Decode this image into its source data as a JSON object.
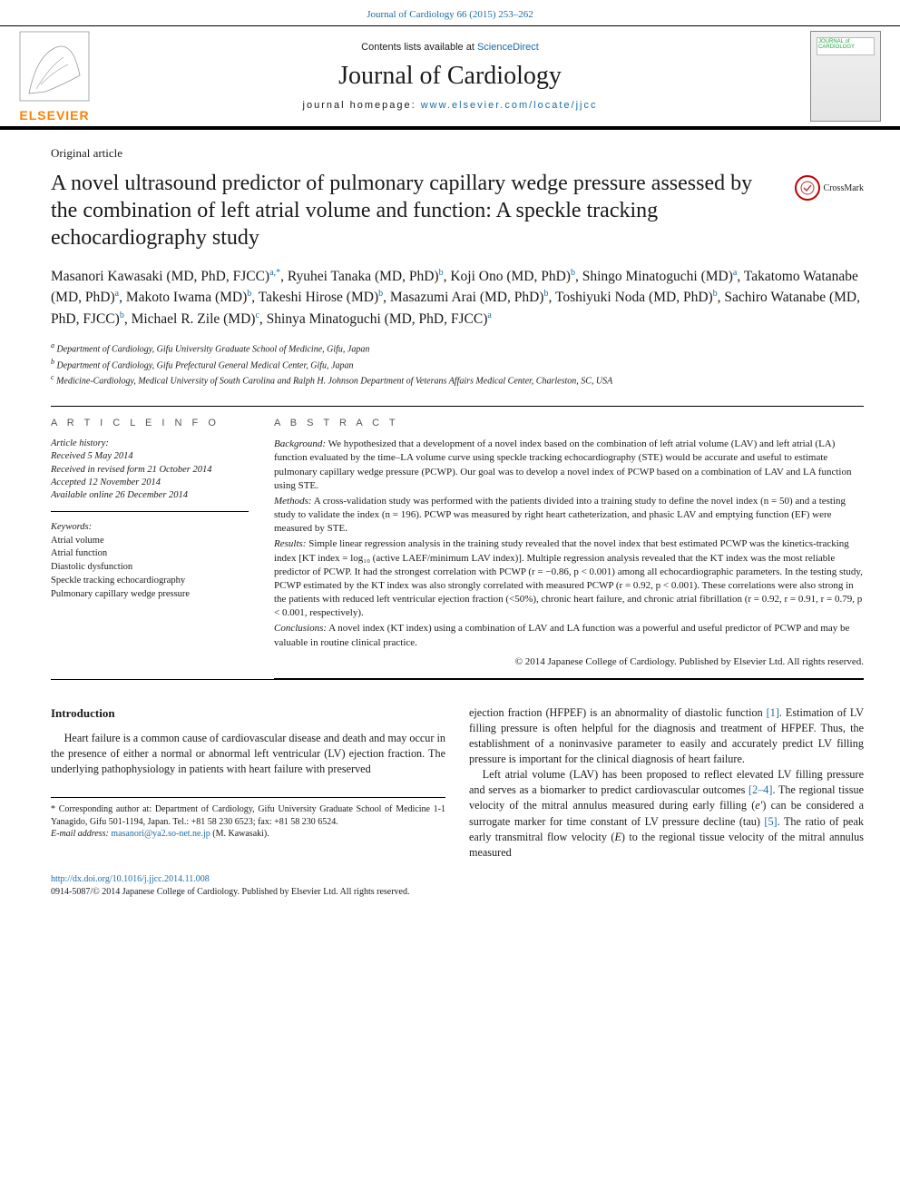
{
  "top_citation": "Journal of Cardiology 66 (2015) 253–262",
  "masthead": {
    "publisher_name": "ELSEVIER",
    "contents_prefix": "Contents lists available at ",
    "contents_link": "ScienceDirect",
    "journal": "Journal of Cardiology",
    "homepage_prefix": "journal homepage: ",
    "homepage_url": "www.elsevier.com/locate/jjcc",
    "cover_title": "JOURNAL of CARDIOLOGY"
  },
  "article_type": "Original article",
  "title": "A novel ultrasound predictor of pulmonary capillary wedge pressure assessed by the combination of left atrial volume and function: A speckle tracking echocardiography study",
  "crossmark_label": "CrossMark",
  "authors_html": "Masanori Kawasaki (MD, PhD, FJCC)<span class='affil-sup'>a,</span><span class='affil-sup star'>*</span>, Ryuhei Tanaka (MD, PhD)<span class='affil-sup'>b</span>, Koji Ono (MD, PhD)<span class='affil-sup'>b</span>, Shingo Minatoguchi (MD)<span class='affil-sup'>a</span>, Takatomo Watanabe (MD, PhD)<span class='affil-sup'>a</span>, Makoto Iwama (MD)<span class='affil-sup'>b</span>, Takeshi Hirose (MD)<span class='affil-sup'>b</span>, Masazumi Arai (MD, PhD)<span class='affil-sup'>b</span>, Toshiyuki Noda (MD, PhD)<span class='affil-sup'>b</span>, Sachiro Watanabe (MD, PhD, FJCC)<span class='affil-sup'>b</span>, Michael R. Zile (MD)<span class='affil-sup'>c</span>, Shinya Minatoguchi (MD, PhD, FJCC)<span class='affil-sup'>a</span>",
  "affiliations": {
    "a": "Department of Cardiology, Gifu University Graduate School of Medicine, Gifu, Japan",
    "b": "Department of Cardiology, Gifu Prefectural General Medical Center, Gifu, Japan",
    "c": "Medicine-Cardiology, Medical University of South Carolina and Ralph H. Johnson Department of Veterans Affairs Medical Center, Charleston, SC, USA"
  },
  "info_header": "A R T I C L E   I N F O",
  "abstract_header": "A B S T R A C T",
  "history": {
    "label": "Article history:",
    "received": "Received 5 May 2014",
    "revised": "Received in revised form 21 October 2014",
    "accepted": "Accepted 12 November 2014",
    "online": "Available online 26 December 2014"
  },
  "keywords": {
    "label": "Keywords:",
    "items": [
      "Atrial volume",
      "Atrial function",
      "Diastolic dysfunction",
      "Speckle tracking echocardiography",
      "Pulmonary capillary wedge pressure"
    ]
  },
  "abstract": {
    "background_label": "Background:",
    "background": " We hypothesized that a development of a novel index based on the combination of left atrial volume (LAV) and left atrial (LA) function evaluated by the time–LA volume curve using speckle tracking echocardiography (STE) would be accurate and useful to estimate pulmonary capillary wedge pressure (PCWP). Our goal was to develop a novel index of PCWP based on a combination of LAV and LA function using STE.",
    "methods_label": "Methods:",
    "methods": " A cross-validation study was performed with the patients divided into a training study to define the novel index (n = 50) and a testing study to validate the index (n = 196). PCWP was measured by right heart catheterization, and phasic LAV and emptying function (EF) were measured by STE.",
    "results_label": "Results:",
    "results": " Simple linear regression analysis in the training study revealed that the novel index that best estimated PCWP was the kinetics-tracking index [KT index = log₁₀ (active LAEF/minimum LAV index)]. Multiple regression analysis revealed that the KT index was the most reliable predictor of PCWP. It had the strongest correlation with PCWP (r = −0.86, p < 0.001) among all echocardiographic parameters. In the testing study, PCWP estimated by the KT index was also strongly correlated with measured PCWP (r = 0.92, p < 0.001). These correlations were also strong in the patients with reduced left ventricular ejection fraction (<50%), chronic heart failure, and chronic atrial fibrillation (r = 0.92, r = 0.91, r = 0.79, p < 0.001, respectively).",
    "conclusions_label": "Conclusions:",
    "conclusions": " A novel index (KT index) using a combination of LAV and LA function was a powerful and useful predictor of PCWP and may be valuable in routine clinical practice.",
    "copyright": "© 2014 Japanese College of Cardiology. Published by Elsevier Ltd. All rights reserved."
  },
  "intro": {
    "heading": "Introduction",
    "p1": "Heart failure is a common cause of cardiovascular disease and death and may occur in the presence of either a normal or abnormal left ventricular (LV) ejection fraction. The underlying pathophysiology in patients with heart failure with preserved",
    "p2_a": "ejection fraction (HFPEF) is an abnormality of diastolic function ",
    "p2_ref1": "[1]",
    "p2_b": ". Estimation of LV filling pressure is often helpful for the diagnosis and treatment of HFPEF. Thus, the establishment of a noninvasive parameter to easily and accurately predict LV filling pressure is important for the clinical diagnosis of heart failure.",
    "p3_a": "Left atrial volume (LAV) has been proposed to reflect elevated LV filling pressure and serves as a biomarker to predict cardiovascular outcomes ",
    "p3_ref1": "[2–4]",
    "p3_b": ". The regional tissue velocity of the mitral annulus measured during early filling (",
    "p3_i1": "e′",
    "p3_c": ") can be considered a surrogate marker for time constant of LV pressure decline (tau) ",
    "p3_ref2": "[5]",
    "p3_d": ". The ratio of peak early transmitral flow velocity (",
    "p3_i2": "E",
    "p3_e": ") to the regional tissue velocity of the mitral annulus measured"
  },
  "footnotes": {
    "corr_label": "* Corresponding author at: ",
    "corr_text": "Department of Cardiology, Gifu University Graduate School of Medicine 1-1 Yanagido, Gifu 501-1194, Japan. Tel.: +81 58 230 6523; fax: +81 58 230 6524.",
    "email_label": "E-mail address: ",
    "email": "masanori@ya2.so-net.ne.jp",
    "email_suffix": " (M. Kawasaki)."
  },
  "doi": {
    "url": "http://dx.doi.org/10.1016/j.jjcc.2014.11.008",
    "line2": "0914-5087/© 2014 Japanese College of Cardiology. Published by Elsevier Ltd. All rights reserved."
  },
  "colors": {
    "link": "#1a6ba8",
    "publisher": "#ff8200",
    "text": "#1a1a1a",
    "rule": "#000000"
  }
}
